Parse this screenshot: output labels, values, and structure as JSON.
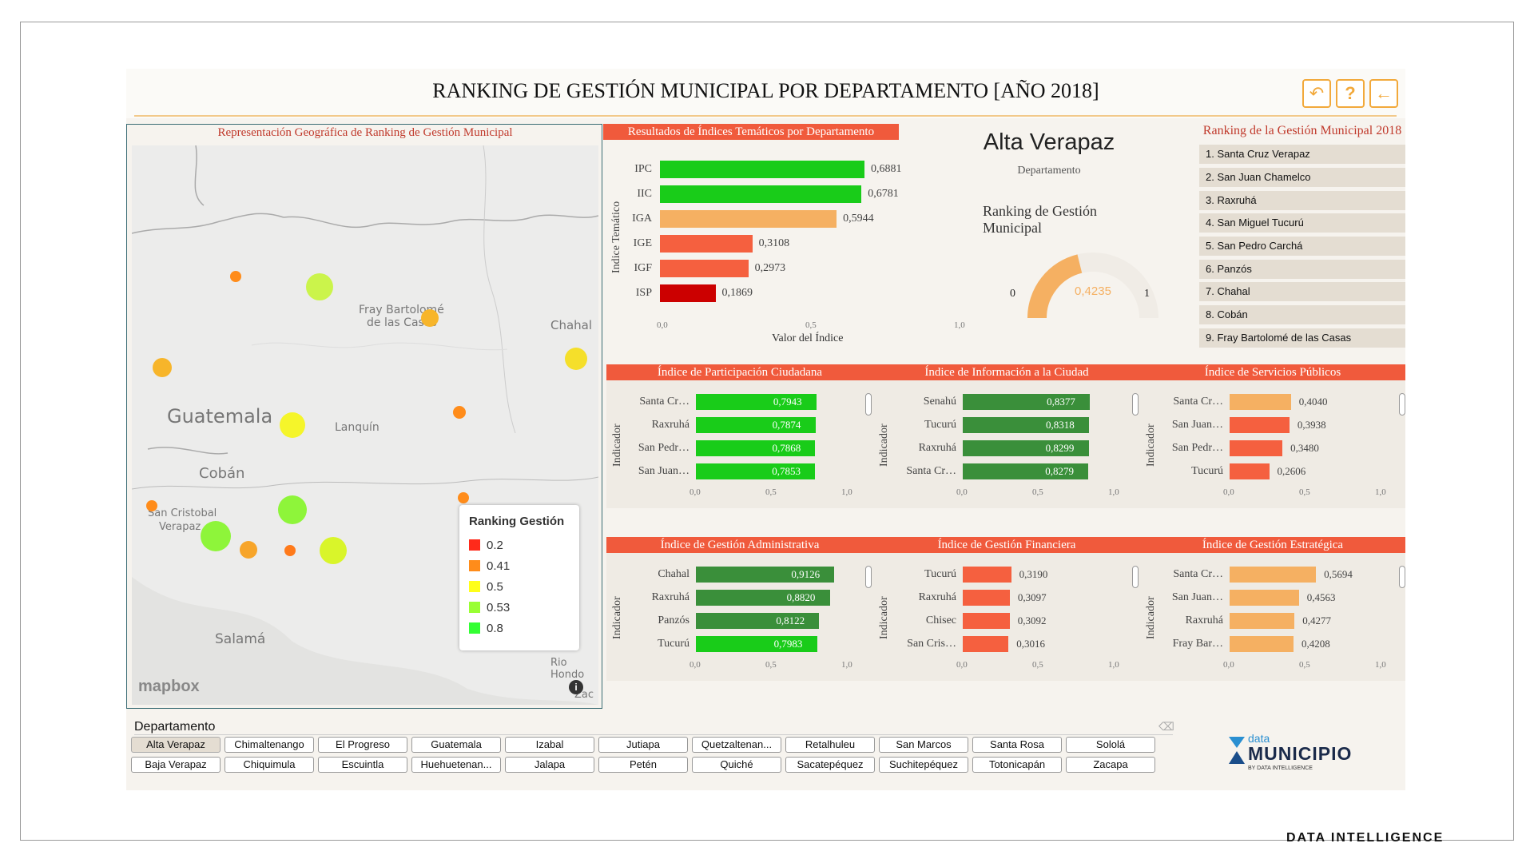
{
  "header": {
    "title": "RANKING DE GESTIÓN MUNICIPAL POR DEPARTAMENTO [AÑO 2018]",
    "buttons": [
      "undo-icon",
      "help-icon",
      "back-icon"
    ]
  },
  "map": {
    "title": "Representación Geográfica de Ranking de Gestión Municipal",
    "places": {
      "guatemala": "Guatemala",
      "coban": "Cobán",
      "fray": "Fray Bartolomé",
      "fray2": "de las Casas",
      "chahal": "Chahal",
      "lanquin": "Lanquín",
      "sancristobal": "San Cristobal",
      "verapaz": "Verapaz",
      "salama": "Salamá",
      "riohondo": "Rio Hondo",
      "zac": "Zac"
    },
    "legend_title": "Ranking Gestión",
    "legend": [
      {
        "label": "0.2",
        "color": "#ff2a1a"
      },
      {
        "label": "0.41",
        "color": "#ff8c1a"
      },
      {
        "label": "0.5",
        "color": "#ffff1a"
      },
      {
        "label": "0.53",
        "color": "#99ff33"
      },
      {
        "label": "0.8",
        "color": "#33ff33"
      }
    ],
    "attribution": "mapbox",
    "info": "i"
  },
  "tematicos": {
    "title": "Resultados de Índices Temáticos por Departamento",
    "ylabel": "Indice Temático",
    "xlabel": "Valor del Índice",
    "ticks": [
      "0,0",
      "0,5",
      "1,0"
    ]
  },
  "department": {
    "name": "Alta Verapaz",
    "sublabel": "Departamento",
    "gauge_title": "Ranking de Gestión Municipal",
    "gauge_min": "0",
    "gauge_max": "1",
    "gauge_value_text": "0,4235",
    "gauge_value": 0.4235
  },
  "ranking": {
    "title": "Ranking de la Gestión Municipal 2018",
    "items": [
      "1. Santa Cruz Verapaz",
      "2. San Juan Chamelco",
      "3. Raxruhá",
      "4. San Miguel Tucurú",
      "5. San Pedro Carchá",
      "6. Panzós",
      "7. Chahal",
      "8. Cobán",
      "9. Fray Bartolomé de las Casas"
    ]
  },
  "small_charts": {
    "ylabel": "Indicador",
    "ticks": [
      "0,0",
      "0,5",
      "1,0"
    ],
    "titles": [
      "Índice de Participación Ciudadana",
      "Índice de Información a la Ciudad",
      "Índice de Servicios Públicos",
      "Índice de Gestión Administrativa",
      "Índice de Gestión Financiera",
      "Índice de Gestión Estratégica"
    ]
  },
  "filter": {
    "label": "Departamento",
    "eraser": "eraser-icon",
    "row1": [
      "Alta Verapaz",
      "Chimaltenango",
      "El Progreso",
      "Guatemala",
      "Izabal",
      "Jutiapa",
      "Quetzaltenan...",
      "Retalhuleu",
      "San Marcos",
      "Santa Rosa",
      "Sololá"
    ],
    "row2": [
      "Baja Verapaz",
      "Chiquimula",
      "Escuintla",
      "Huehuetenan...",
      "Jalapa",
      "Petén",
      "Quiché",
      "Sacatepéquez",
      "Suchitepéquez",
      "Totonicapán",
      "Zacapa"
    ],
    "selected": "Alta Verapaz"
  },
  "brand": {
    "data_word": "data",
    "municipio": "MUNICIPIO",
    "by": "BY DATA INTELLIGENCE",
    "footer": "DATA INTELLIGENCE"
  },
  "chart_data": [
    {
      "type": "bar",
      "title": "Resultados de Índices Temáticos por Departamento",
      "xlabel": "Valor del Índice",
      "ylabel": "Indice Temático",
      "categories": [
        "IPC",
        "IIC",
        "IGA",
        "IGE",
        "IGF",
        "ISP"
      ],
      "values": [
        0.6881,
        0.6781,
        0.5944,
        0.3108,
        0.2973,
        0.1869
      ],
      "labels": [
        "0,6881",
        "0,6781",
        "0,5944",
        "0,3108",
        "0,2973",
        "0,1869"
      ],
      "colors": [
        "#19cc19",
        "#19cc19",
        "#f5b062",
        "#f5603f",
        "#f5603f",
        "#cc0000"
      ],
      "xlim": [
        0,
        1
      ]
    },
    {
      "type": "bar",
      "title": "Índice de Participación Ciudadana",
      "categories": [
        "Santa Cr…",
        "Raxruhá",
        "San Pedr…",
        "San Juan…"
      ],
      "values": [
        0.7943,
        0.7874,
        0.7868,
        0.7853
      ],
      "labels": [
        "0,7943",
        "0,7874",
        "0,7868",
        "0,7853"
      ],
      "colors": [
        "#19cc19",
        "#19cc19",
        "#19cc19",
        "#19cc19"
      ],
      "label_inside": true,
      "xlim": [
        0,
        1
      ]
    },
    {
      "type": "bar",
      "title": "Índice de Información a la Ciudad",
      "categories": [
        "Senahú",
        "Tucurú",
        "Raxruhá",
        "Santa Cr…"
      ],
      "values": [
        0.8377,
        0.8318,
        0.8299,
        0.8279
      ],
      "labels": [
        "0,8377",
        "0,8318",
        "0,8299",
        "0,8279"
      ],
      "colors": [
        "#3a8f3a",
        "#3a8f3a",
        "#3a8f3a",
        "#3a8f3a"
      ],
      "label_inside": true,
      "xlim": [
        0,
        1
      ]
    },
    {
      "type": "bar",
      "title": "Índice de Servicios Públicos",
      "categories": [
        "Santa Cr…",
        "San Juan…",
        "San Pedr…",
        "Tucurú"
      ],
      "values": [
        0.404,
        0.3938,
        0.348,
        0.2606
      ],
      "labels": [
        "0,4040",
        "0,3938",
        "0,3480",
        "0,2606"
      ],
      "colors": [
        "#f5b062",
        "#f5603f",
        "#f5603f",
        "#f5603f"
      ],
      "label_inside": false,
      "xlim": [
        0,
        1
      ]
    },
    {
      "type": "bar",
      "title": "Índice de Gestión Administrativa",
      "categories": [
        "Chahal",
        "Raxruhá",
        "Panzós",
        "Tucurú"
      ],
      "values": [
        0.9126,
        0.882,
        0.8122,
        0.7983
      ],
      "labels": [
        "0,9126",
        "0,8820",
        "0,8122",
        "0,7983"
      ],
      "colors": [
        "#3a8f3a",
        "#3a8f3a",
        "#3a8f3a",
        "#19cc19"
      ],
      "label_inside": true,
      "xlim": [
        0,
        1
      ]
    },
    {
      "type": "bar",
      "title": "Índice de Gestión Financiera",
      "categories": [
        "Tucurú",
        "Raxruhá",
        "Chisec",
        "San Cris…"
      ],
      "values": [
        0.319,
        0.3097,
        0.3092,
        0.3016
      ],
      "labels": [
        "0,3190",
        "0,3097",
        "0,3092",
        "0,3016"
      ],
      "colors": [
        "#f5603f",
        "#f5603f",
        "#f5603f",
        "#f5603f"
      ],
      "label_inside": false,
      "xlim": [
        0,
        1
      ]
    },
    {
      "type": "bar",
      "title": "Índice de Gestión Estratégica",
      "categories": [
        "Santa Cr…",
        "San Juan…",
        "Raxruhá",
        "Fray Bar…"
      ],
      "values": [
        0.5694,
        0.4563,
        0.4277,
        0.4208
      ],
      "labels": [
        "0,5694",
        "0,4563",
        "0,4277",
        "0,4208"
      ],
      "colors": [
        "#f5b062",
        "#f5b062",
        "#f5b062",
        "#f5b062"
      ],
      "label_inside": false,
      "xlim": [
        0,
        1
      ]
    }
  ]
}
